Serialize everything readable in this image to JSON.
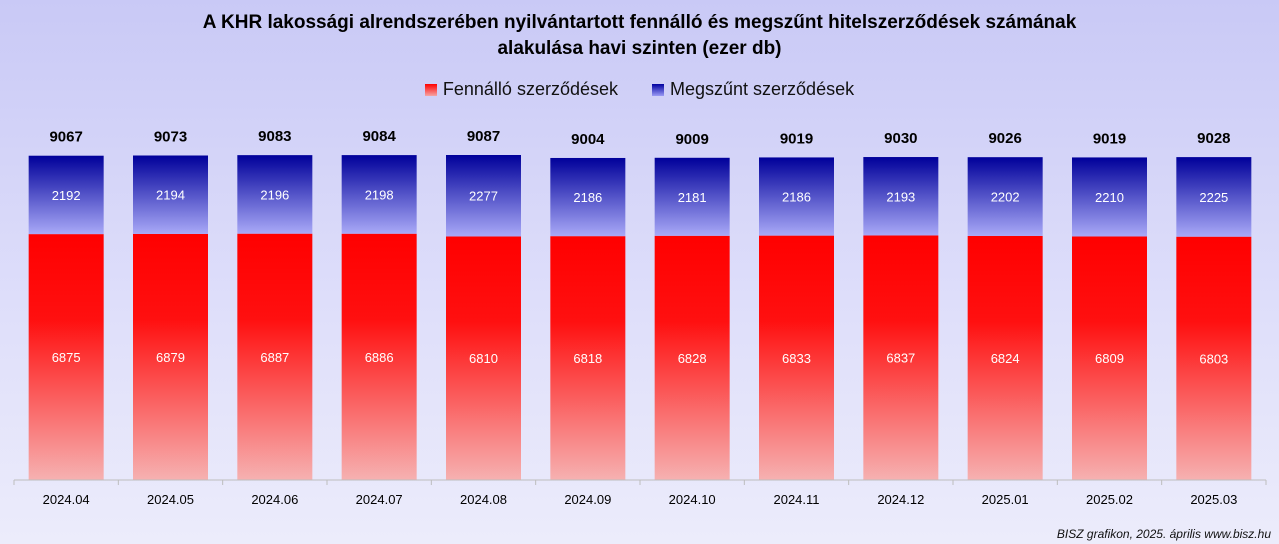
{
  "chart_data": {
    "type": "bar",
    "stacked": true,
    "title_line1": "A KHR lakossági alrendszerében nyilvántartott fennálló és megszűnt hitelszerződések számának",
    "title_line2": "alakulása havi szinten (ezer db)",
    "categories": [
      "2024.04",
      "2024.05",
      "2024.06",
      "2024.07",
      "2024.08",
      "2024.09",
      "2024.10",
      "2024.11",
      "2024.12",
      "2025.01",
      "2025.02",
      "2025.03"
    ],
    "series": [
      {
        "name": "Fennálló szerződések",
        "color": "#ff0000",
        "values": [
          6875,
          6879,
          6887,
          6886,
          6810,
          6818,
          6828,
          6833,
          6837,
          6824,
          6809,
          6803
        ]
      },
      {
        "name": "Megszűnt szerződések",
        "color": "#00009a",
        "values": [
          2192,
          2194,
          2196,
          2198,
          2277,
          2186,
          2181,
          2186,
          2193,
          2202,
          2210,
          2225
        ]
      }
    ],
    "totals": [
      9067,
      9073,
      9083,
      9084,
      9087,
      9004,
      9009,
      9019,
      9030,
      9026,
      9019,
      9028
    ],
    "legend_position": "top",
    "grid": false,
    "ylim": [
      0,
      9087
    ]
  },
  "footer": "BISZ grafikon, 2025. április www.bisz.hu"
}
